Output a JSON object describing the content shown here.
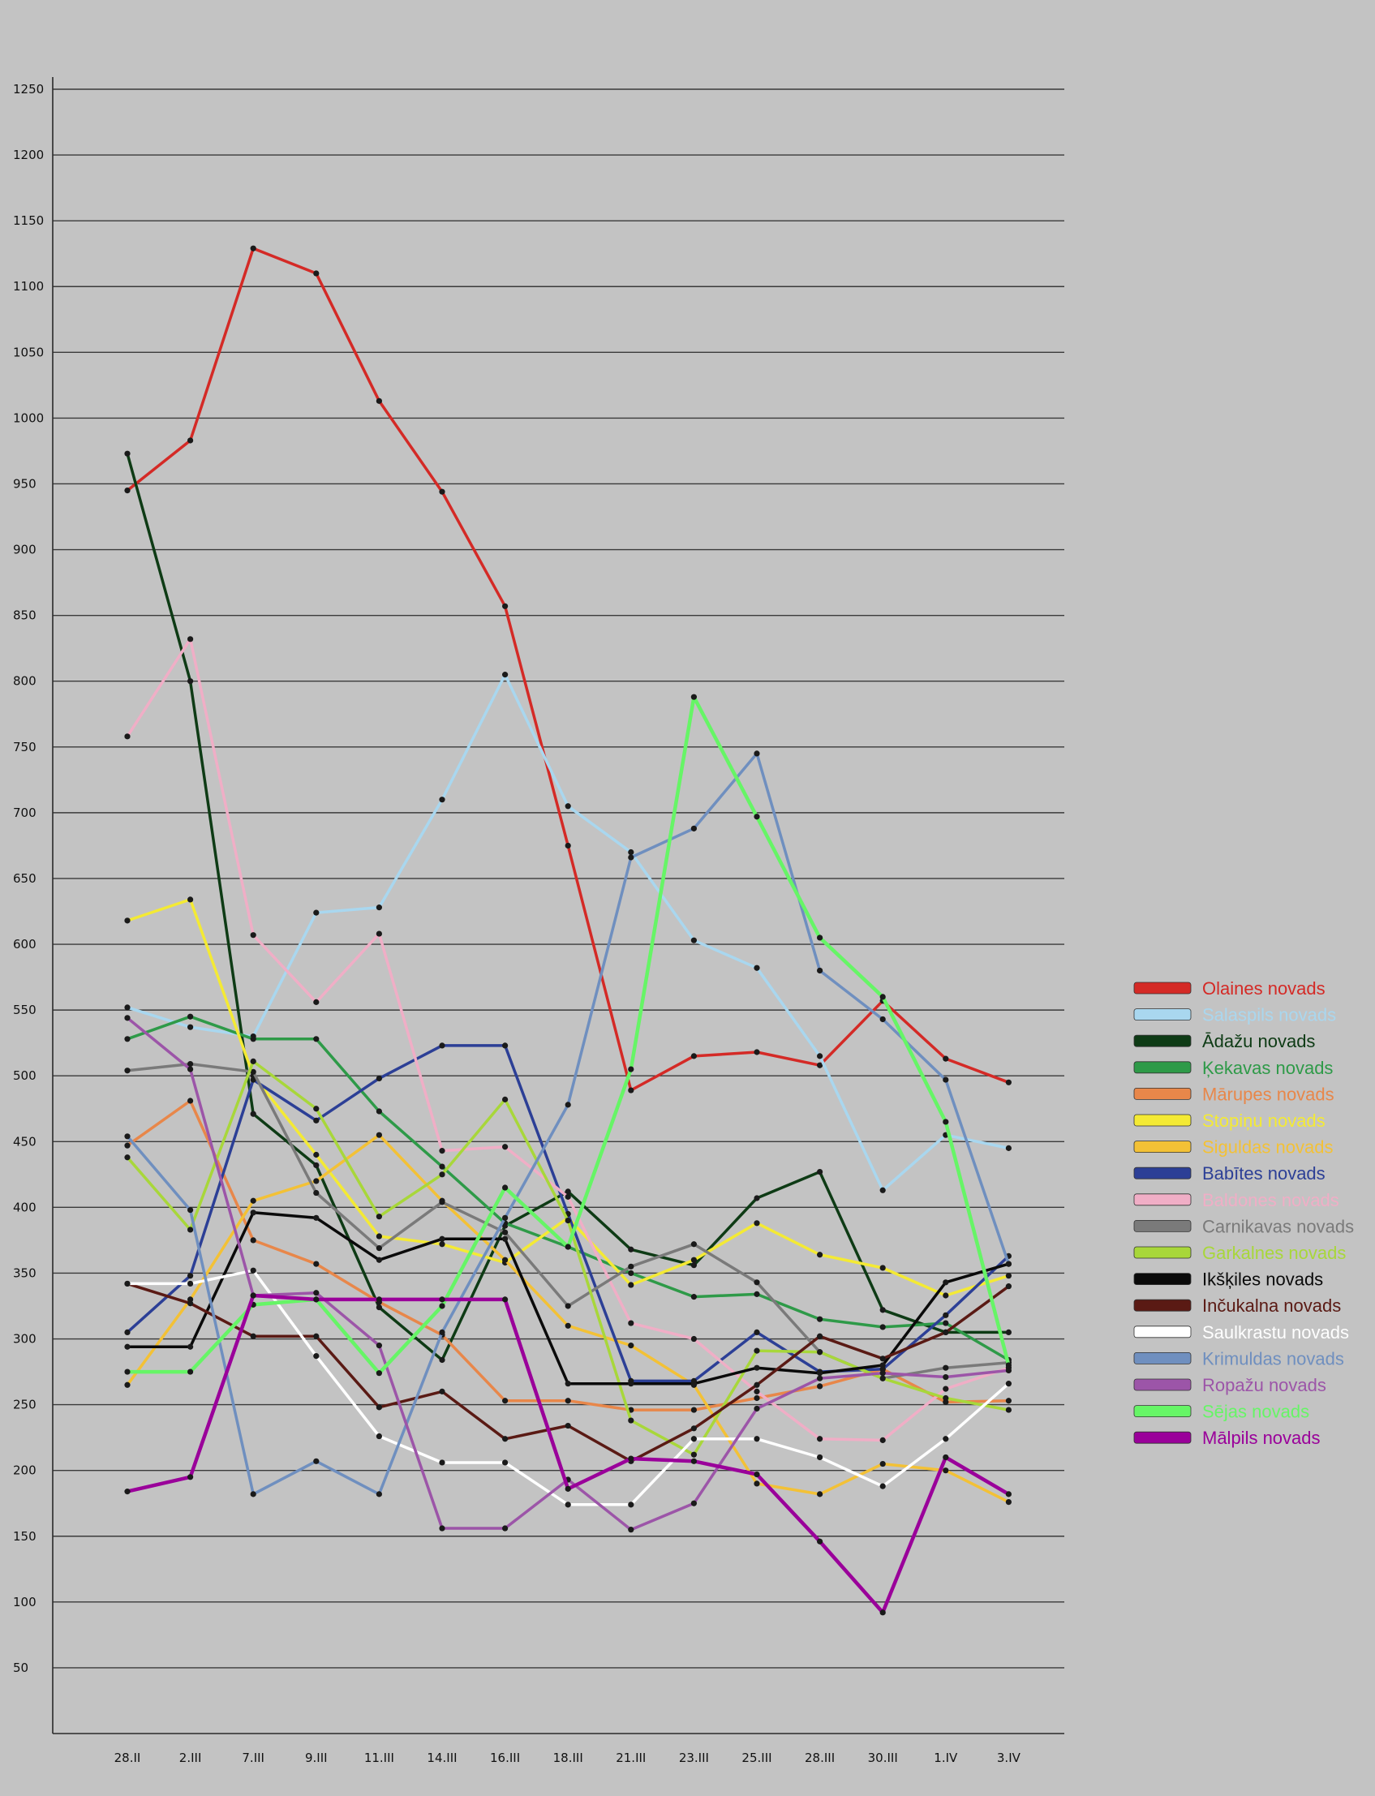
{
  "chart_data": {
    "type": "line",
    "title": "",
    "xlabel": "",
    "ylabel": "",
    "ylim": [
      0,
      1250
    ],
    "y_ticks": [
      50,
      100,
      150,
      200,
      250,
      300,
      350,
      400,
      450,
      500,
      550,
      600,
      650,
      700,
      750,
      800,
      850,
      900,
      950,
      1000,
      1050,
      1100,
      1150,
      1200,
      1250
    ],
    "categories": [
      "28.II",
      "2.III",
      "7.III",
      "9.III",
      "11.III",
      "14.III",
      "16.III",
      "18.III",
      "21.III",
      "23.III",
      "25.III",
      "28.III",
      "30.III",
      "1.IV",
      "3.IV"
    ],
    "grid": "horizontal",
    "legend_position": "right",
    "series": [
      {
        "name": "Olaines novads",
        "color": "#d42a26",
        "values": [
          945,
          983,
          1129,
          1110,
          1013,
          944,
          857,
          675,
          489,
          515,
          518,
          508,
          557,
          513,
          495
        ]
      },
      {
        "name": "Salaspils novads",
        "color": "#a9d7ef",
        "values": [
          552,
          537,
          530,
          624,
          628,
          710,
          805,
          705,
          670,
          603,
          582,
          515,
          413,
          455,
          445
        ]
      },
      {
        "name": "Ādažu novads",
        "color": "#0e3b15",
        "values": [
          973,
          800,
          471,
          432,
          324,
          284,
          386,
          412,
          368,
          356,
          407,
          427,
          322,
          305,
          305
        ]
      },
      {
        "name": "Ķekavas novads",
        "color": "#2e9a48",
        "values": [
          528,
          545,
          528,
          528,
          473,
          431,
          388,
          370,
          350,
          332,
          334,
          315,
          309,
          312,
          284
        ]
      },
      {
        "name": "Mārupes novads",
        "color": "#e8874a",
        "values": [
          447,
          481,
          375,
          357,
          328,
          303,
          253,
          253,
          246,
          246,
          255,
          264,
          277,
          252,
          253
        ]
      },
      {
        "name": "Stopiņu novads",
        "color": "#f4ea34",
        "values": [
          618,
          634,
          500,
          440,
          378,
          372,
          358,
          392,
          341,
          360,
          388,
          364,
          354,
          333,
          348
        ]
      },
      {
        "name": "Siguldas novads",
        "color": "#f3c136",
        "values": [
          265,
          330,
          405,
          420,
          455,
          405,
          360,
          310,
          295,
          265,
          190,
          182,
          205,
          200,
          176
        ]
      },
      {
        "name": "Babītes novads",
        "color": "#2c3f96",
        "values": [
          305,
          348,
          497,
          466,
          498,
          523,
          523,
          395,
          268,
          268,
          305,
          275,
          277,
          318,
          363
        ]
      },
      {
        "name": "Baldones novads",
        "color": "#f0aec6",
        "values": [
          758,
          832,
          607,
          556,
          608,
          443,
          446,
          408,
          312,
          300,
          260,
          224,
          223,
          262,
          278
        ]
      },
      {
        "name": "Carnikavas novads",
        "color": "#7a7a7a",
        "values": [
          504,
          509,
          503,
          411,
          369,
          404,
          381,
          325,
          355,
          372,
          343,
          290,
          270,
          278,
          282
        ]
      },
      {
        "name": "Garkalnes novads",
        "color": "#a8d73a",
        "values": [
          438,
          383,
          511,
          475,
          393,
          425,
          482,
          390,
          238,
          212,
          291,
          290,
          270,
          255,
          246
        ]
      },
      {
        "name": "Ikšķiles novads",
        "color": "#0a0a0a",
        "values": [
          294,
          294,
          396,
          392,
          360,
          376,
          376,
          266,
          266,
          266,
          278,
          274,
          280,
          343,
          357
        ]
      },
      {
        "name": "Inčukalna novads",
        "color": "#5a1a14",
        "values": [
          342,
          327,
          302,
          302,
          248,
          260,
          224,
          234,
          207,
          232,
          265,
          302,
          285,
          305,
          340
        ]
      },
      {
        "name": "Saulkrastu novads",
        "color": "#ffffff",
        "values": [
          342,
          342,
          352,
          287,
          226,
          206,
          206,
          174,
          174,
          224,
          224,
          210,
          188,
          224,
          266
        ]
      },
      {
        "name": "Krimuldas novads",
        "color": "#6f8fbf",
        "values": [
          454,
          398,
          182,
          207,
          182,
          305,
          392,
          478,
          666,
          688,
          745,
          580,
          543,
          497,
          357
        ]
      },
      {
        "name": "Ropažu novads",
        "color": "#9c55a8",
        "values": [
          544,
          505,
          333,
          335,
          295,
          156,
          156,
          193,
          155,
          175,
          247,
          270,
          274,
          271,
          276
        ]
      },
      {
        "name": "Sējas novads",
        "color": "#66f566",
        "values": [
          275,
          275,
          326,
          330,
          274,
          325,
          415,
          370,
          505,
          788,
          697,
          605,
          560,
          465,
          280
        ]
      },
      {
        "name": "Mālpils novads",
        "color": "#9a009a",
        "values": [
          184,
          195,
          333,
          330,
          330,
          330,
          330,
          186,
          209,
          207,
          197,
          146,
          92,
          210,
          182
        ]
      }
    ]
  }
}
